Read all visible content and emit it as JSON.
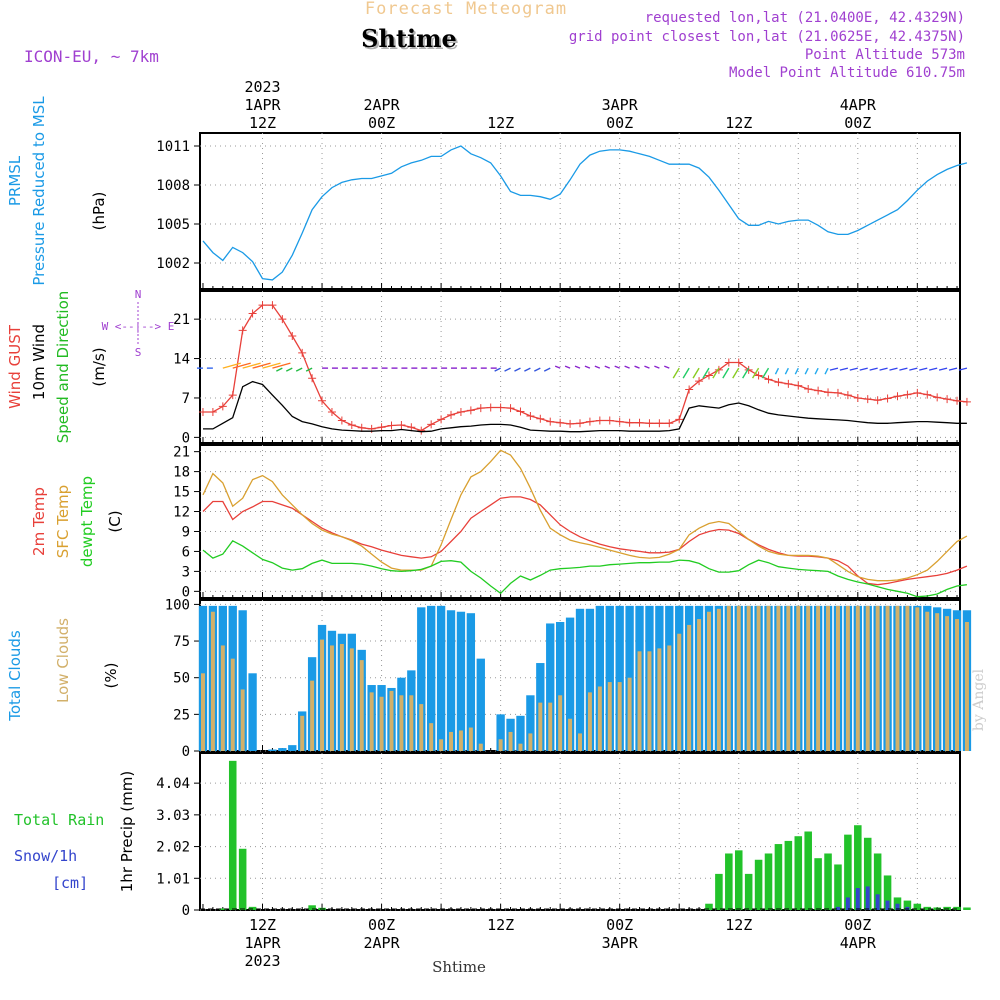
{
  "header": {
    "product": "Forecast Meteogram",
    "location": "Shtime",
    "model": "ICON-EU, ~ 7km",
    "requested": "requested lon,lat (21.0400E, 42.4329N)",
    "gridpoint": "grid point closest lon,lat (21.0625E, 42.4375N)",
    "point_alt": "Point Altitude 573m",
    "model_alt": "Model Point Altitude 610.75m",
    "footer_location": "Shtime",
    "watermark": "by Angel"
  },
  "colors": {
    "pressure": "#1a9ae6",
    "gust": "#e8403a",
    "wind": "#000000",
    "direction": "#22bb22",
    "temp2m": "#e8403a",
    "sfc_temp": "#d9a030",
    "dewpt": "#22cc22",
    "total_clouds": "#1a9ae6",
    "low_clouds": "#d2b06a",
    "rain": "#22c22a",
    "snow": "#3344cc",
    "header_purple": "#a040d0",
    "header_orange": "#f0c890"
  },
  "chart_data": [
    {
      "type": "line",
      "panel": "pressure",
      "title": "PRMSL Pressure Reduced to MSL",
      "ylabel": "(hPa)",
      "ylabel_lines": [
        "PRMSL",
        "Pressure Reduced to MSL"
      ],
      "ylim": [
        1000,
        1012
      ],
      "yticks": [
        "1002",
        "1005",
        "1008",
        "1011"
      ],
      "ytick_values": [
        1002,
        1005,
        1008,
        1011
      ],
      "grid": true,
      "x_start_hour": 0,
      "series": [
        {
          "name": "PRMSL",
          "values": [
            1003.7,
            1002.8,
            1002.2,
            1003.2,
            1002.8,
            1002.1,
            1000.8,
            1000.7,
            1001.3,
            1002.6,
            1004.3,
            1006.1,
            1007.1,
            1007.8,
            1008.2,
            1008.4,
            1008.5,
            1008.5,
            1008.7,
            1008.9,
            1009.4,
            1009.7,
            1009.9,
            1010.2,
            1010.2,
            1010.7,
            1011.0,
            1010.4,
            1010.1,
            1009.7,
            1008.7,
            1007.5,
            1007.2,
            1007.2,
            1007.1,
            1006.9,
            1007.3,
            1008.4,
            1009.6,
            1010.3,
            1010.6,
            1010.7,
            1010.7,
            1010.6,
            1010.4,
            1010.2,
            1009.9,
            1009.6,
            1009.6,
            1009.6,
            1009.3,
            1008.6,
            1007.6,
            1006.5,
            1005.4,
            1004.9,
            1004.9,
            1005.2,
            1005.0,
            1005.2,
            1005.3,
            1005.3,
            1004.9,
            1004.4,
            1004.2,
            1004.2,
            1004.5,
            1004.9,
            1005.3,
            1005.7,
            1006.1,
            1006.8,
            1007.6,
            1008.3,
            1008.8,
            1009.2,
            1009.5,
            1009.7
          ]
        }
      ]
    },
    {
      "type": "line",
      "panel": "wind",
      "title": "Wind GUST / 10m Wind Speed and Direction",
      "ylabel": "(m/s)",
      "ylabel_lines": [
        "Wind GUST",
        "10m Wind",
        "Speed and Direction"
      ],
      "compass": "W <--|--> E",
      "compass_n": "N",
      "compass_s": "S",
      "ylim": [
        -1,
        26
      ],
      "yticks": [
        "0",
        "7",
        "14",
        "21"
      ],
      "ytick_values": [
        0,
        7,
        14,
        21
      ],
      "grid": true,
      "x_start_hour": 0,
      "series": [
        {
          "name": "Wind GUST",
          "values": [
            4.5,
            4.5,
            5.5,
            7.5,
            19,
            22,
            23.5,
            23.5,
            21,
            18,
            15,
            10.5,
            6.5,
            4.5,
            3,
            2.2,
            1.7,
            1.5,
            1.8,
            2.1,
            2.2,
            1.8,
            1.2,
            2.3,
            3.2,
            4,
            4.5,
            4.8,
            5.2,
            5.3,
            5.3,
            5.2,
            4.6,
            3.8,
            3.3,
            2.8,
            2.6,
            2.4,
            2.5,
            2.8,
            3,
            3,
            2.8,
            2.6,
            2.6,
            2.5,
            2.5,
            2.5,
            3.2,
            8.5,
            10,
            11,
            12,
            13.3,
            13.3,
            12,
            11,
            10.3,
            9.8,
            9.5,
            9.2,
            8.6,
            8.3,
            8,
            7.9,
            7.5,
            7,
            6.8,
            6.6,
            6.9,
            7.3,
            7.6,
            7.9,
            7.6,
            7.1,
            6.8,
            6.5,
            6.3
          ]
        },
        {
          "name": "10m Wind",
          "values": [
            1.5,
            1.5,
            2.5,
            3.5,
            9,
            9.9,
            9.4,
            7.5,
            5.7,
            3.7,
            2.8,
            2.4,
            1.9,
            1.5,
            1.3,
            1.2,
            1.1,
            1.1,
            1.2,
            1.2,
            1.4,
            1.2,
            1.0,
            1.1,
            1.5,
            1.7,
            1.9,
            2.0,
            2.2,
            2.3,
            2.3,
            2.2,
            1.8,
            1.3,
            1.2,
            1.1,
            1.1,
            1.0,
            1.0,
            1.1,
            1.2,
            1.2,
            1.2,
            1.1,
            1.1,
            1.1,
            1.1,
            1.2,
            1.5,
            5.2,
            5.6,
            5.4,
            5.2,
            5.8,
            6.1,
            5.6,
            4.9,
            4.3,
            4.0,
            3.8,
            3.6,
            3.4,
            3.3,
            3.2,
            3.1,
            3.0,
            2.8,
            2.6,
            2.5,
            2.5,
            2.6,
            2.7,
            2.8,
            2.8,
            2.7,
            2.6,
            2.5,
            2.5
          ]
        }
      ]
    },
    {
      "type": "line",
      "panel": "temperature",
      "title": "2m Temp / SFC Temp / dewpt Temp",
      "ylabel": "(C)",
      "ylabel_lines": [
        "2m Temp",
        "SFC Temp",
        "dewpt Temp"
      ],
      "ylim": [
        -1,
        22
      ],
      "yticks": [
        "0",
        "3",
        "6",
        "9",
        "12",
        "15",
        "18",
        "21"
      ],
      "ytick_values": [
        0,
        3,
        6,
        9,
        12,
        15,
        18,
        21
      ],
      "grid": true,
      "x_start_hour": 0,
      "series": [
        {
          "name": "2m Temp",
          "values": [
            12,
            13.5,
            13.5,
            10.8,
            12,
            12.7,
            13.5,
            13.5,
            13,
            12.5,
            11.5,
            10.5,
            9.5,
            8.8,
            8.2,
            7.7,
            7.1,
            6.7,
            6.2,
            5.8,
            5.4,
            5.2,
            5.0,
            5.2,
            6,
            7.5,
            9,
            11,
            12,
            13,
            14,
            14.2,
            14.2,
            13.8,
            13.0,
            11.5,
            10.0,
            9,
            8.2,
            7.6,
            7.1,
            6.7,
            6.4,
            6.2,
            6.0,
            5.8,
            5.8,
            5.9,
            6.3,
            7.5,
            8.5,
            9.0,
            9.3,
            9.2,
            8.7,
            7.8,
            7.0,
            6.3,
            5.8,
            5.4,
            5.3,
            5.3,
            5.2,
            5.0,
            4.6,
            3.8,
            2.3,
            1.2,
            1.0,
            1.2,
            1.5,
            1.8,
            2.0,
            2.2,
            2.4,
            2.7,
            3.2,
            3.8
          ]
        },
        {
          "name": "SFC Temp",
          "values": [
            14.5,
            17.7,
            16.3,
            12.8,
            14,
            16.8,
            17.4,
            16.5,
            14.5,
            13,
            11.5,
            10.2,
            9.2,
            8.6,
            8.2,
            7.6,
            6.8,
            5.6,
            4.4,
            3.5,
            3.2,
            3.2,
            3.2,
            3.8,
            7,
            10.8,
            14.5,
            17.2,
            18,
            19.5,
            21.2,
            20.5,
            18.5,
            15.5,
            12.2,
            9.5,
            8.5,
            7.7,
            7.3,
            7.0,
            6.6,
            6.2,
            5.8,
            5.4,
            5.1,
            5.0,
            5.1,
            5.6,
            6.3,
            8.5,
            9.5,
            10.2,
            10.5,
            10.2,
            9.0,
            7.8,
            6.8,
            6.0,
            5.6,
            5.4,
            5.4,
            5.4,
            5.3,
            5.0,
            4.0,
            3.0,
            2.2,
            1.8,
            1.6,
            1.6,
            1.7,
            2.0,
            2.5,
            3.2,
            4.5,
            6.0,
            7.5,
            8.3
          ]
        },
        {
          "name": "dewpt Temp",
          "values": [
            6.2,
            5.0,
            5.6,
            7.6,
            6.8,
            5.8,
            4.8,
            4.3,
            3.5,
            3.2,
            3.4,
            4.2,
            4.7,
            4.2,
            4.2,
            4.2,
            4.1,
            3.8,
            3.4,
            3.1,
            3.0,
            3.1,
            3.3,
            3.8,
            4.5,
            4.6,
            4.4,
            3.0,
            2.0,
            0.8,
            -0.3,
            1.2,
            2.3,
            1.7,
            2.4,
            3.2,
            3.4,
            3.5,
            3.6,
            3.8,
            3.8,
            4.0,
            4.1,
            4.2,
            4.3,
            4.3,
            4.4,
            4.4,
            4.7,
            4.6,
            4.2,
            3.4,
            2.9,
            2.9,
            3.1,
            4.0,
            4.7,
            4.3,
            3.7,
            3.5,
            3.3,
            3.2,
            3.1,
            3.0,
            2.3,
            1.8,
            1.4,
            1.1,
            0.7,
            0.3,
            0.0,
            -0.3,
            -0.8,
            -0.7,
            -0.4,
            0.3,
            0.8,
            1.0
          ]
        }
      ]
    },
    {
      "type": "bar",
      "panel": "clouds",
      "title": "Total Clouds / Low Clouds",
      "ylabel": "(%)",
      "ylabel_lines": [
        "Total Clouds",
        "Low Clouds"
      ],
      "ylim": [
        0,
        103
      ],
      "yticks": [
        "0",
        "25",
        "50",
        "75",
        "100"
      ],
      "ytick_values": [
        0,
        25,
        50,
        75,
        100
      ],
      "grid": true,
      "x_start_hour": 0,
      "series": [
        {
          "name": "Total Clouds",
          "values": [
            99,
            99,
            99,
            99,
            96,
            53,
            0,
            1,
            2,
            4,
            27,
            64,
            86,
            82,
            80,
            80,
            69,
            45,
            45,
            43,
            50,
            55,
            98,
            99,
            99,
            96,
            95,
            94,
            63,
            0,
            25,
            22,
            24,
            38,
            60,
            87,
            88,
            91,
            97,
            97,
            99,
            99,
            99,
            99,
            99,
            99,
            99,
            99,
            99,
            99,
            99,
            99,
            99,
            99,
            99,
            99,
            99,
            99,
            99,
            99,
            99,
            99,
            99,
            99,
            99,
            99,
            99,
            99,
            99,
            99,
            99,
            99,
            99,
            99,
            98,
            97,
            96,
            96
          ]
        },
        {
          "name": "Low Clouds",
          "values": [
            53,
            95,
            72,
            63,
            42,
            0,
            0,
            0,
            0,
            0,
            24,
            48,
            76,
            72,
            73,
            70,
            62,
            40,
            37,
            41,
            38,
            38,
            32,
            19,
            8,
            13,
            14,
            16,
            5,
            0,
            8,
            13,
            5,
            12,
            33,
            33,
            38,
            22,
            12,
            40,
            44,
            47,
            47,
            50,
            68,
            68,
            70,
            72,
            80,
            86,
            90,
            95,
            97,
            99,
            99,
            99,
            99,
            99,
            99,
            99,
            99,
            99,
            99,
            99,
            99,
            99,
            99,
            99,
            99,
            99,
            99,
            99,
            98,
            95,
            94,
            92,
            90,
            88
          ]
        }
      ]
    },
    {
      "type": "bar",
      "panel": "precip",
      "title": "Total Rain / Snow/1h",
      "ylabel": "1hr Precip (mm)",
      "ylabel_lines": [
        "Total Rain",
        "Snow/1h",
        "[cm]"
      ],
      "ylim": [
        0,
        5
      ],
      "yticks": [
        "0",
        "1.01",
        "2.02",
        "3.03",
        "4.04"
      ],
      "ytick_values": [
        0,
        1.01,
        2.02,
        3.03,
        4.04
      ],
      "grid": true,
      "x_start_hour": 0,
      "series": [
        {
          "name": "Total Rain",
          "values": [
            0,
            0,
            0.05,
            4.75,
            1.95,
            0.1,
            0,
            0,
            0,
            0,
            0,
            0.15,
            0.07,
            0,
            0,
            0,
            0,
            0,
            0,
            0,
            0,
            0,
            0,
            0,
            0,
            0,
            0,
            0,
            0,
            0,
            0,
            0,
            0,
            0,
            0,
            0,
            0,
            0,
            0,
            0,
            0,
            0,
            0,
            0,
            0,
            0,
            0,
            0,
            0,
            0,
            0,
            0.2,
            1.15,
            1.8,
            1.9,
            1.15,
            1.6,
            1.8,
            2.1,
            2.2,
            2.35,
            2.5,
            1.65,
            1.8,
            1.45,
            2.4,
            2.7,
            2.3,
            1.8,
            1.1,
            0.4,
            0.3,
            0.2,
            0.1,
            0.08,
            0.1,
            0.1,
            0.08
          ]
        },
        {
          "name": "Snow/1h",
          "values": [
            0,
            0,
            0,
            0,
            0,
            0,
            0,
            0,
            0,
            0,
            0,
            0,
            0,
            0,
            0,
            0,
            0,
            0,
            0,
            0,
            0,
            0,
            0,
            0,
            0,
            0,
            0,
            0,
            0,
            0,
            0,
            0,
            0,
            0,
            0,
            0,
            0,
            0,
            0,
            0,
            0,
            0,
            0,
            0,
            0,
            0,
            0,
            0,
            0,
            0,
            0,
            0,
            0,
            0,
            0,
            0,
            0,
            0,
            0,
            0,
            0,
            0,
            0,
            0,
            0.1,
            0.4,
            0.7,
            0.75,
            0.5,
            0.3,
            0.2,
            0.1,
            0,
            0,
            0,
            0,
            0,
            0
          ]
        }
      ]
    }
  ],
  "time_axis": {
    "top_year": "2023",
    "bottom_year": "2023",
    "ticks": [
      {
        "hour": 6,
        "time": "12Z",
        "date": "1APR"
      },
      {
        "hour": 18,
        "time": "00Z",
        "date": "2APR"
      },
      {
        "hour": 30,
        "time": "12Z",
        "date": ""
      },
      {
        "hour": 42,
        "time": "00Z",
        "date": "3APR"
      },
      {
        "hour": 54,
        "time": "12Z",
        "date": ""
      },
      {
        "hour": 66,
        "time": "00Z",
        "date": "4APR"
      }
    ],
    "range_hours": [
      -0.3,
      76.3
    ]
  }
}
